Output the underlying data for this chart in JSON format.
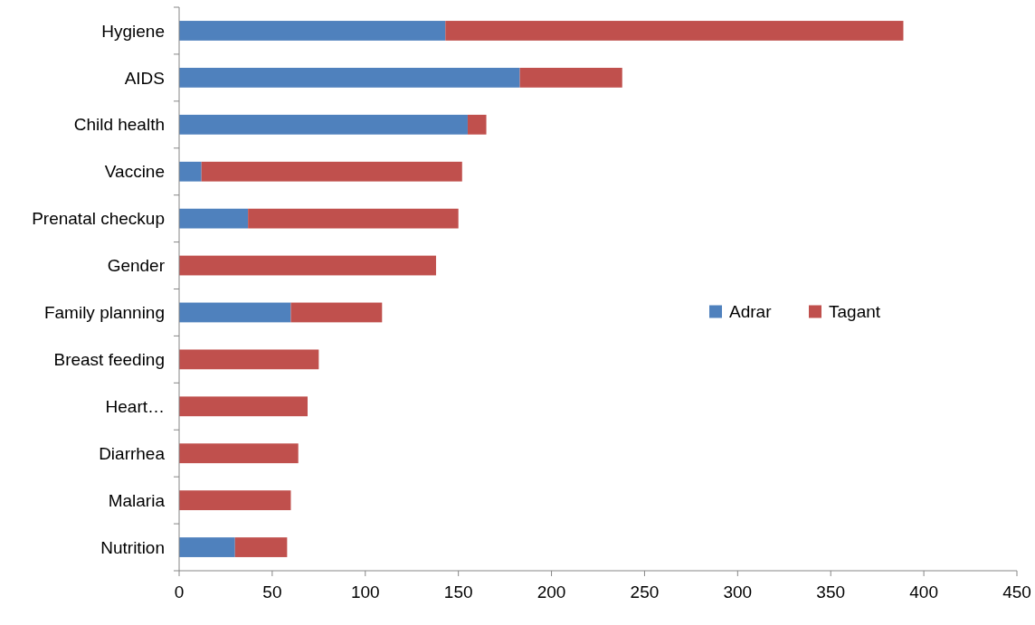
{
  "chart_data": {
    "type": "bar",
    "orientation": "horizontal",
    "stacked": true,
    "categories": [
      "Hygiene",
      "AIDS",
      "Child health",
      "Vaccine",
      "Prenatal checkup",
      "Gender",
      "Family planning",
      "Breast feeding",
      "Heart…",
      "Diarrhea",
      "Malaria",
      "Nutrition"
    ],
    "series": [
      {
        "name": "Adrar",
        "color": "#4f81bd",
        "values": [
          143,
          183,
          155,
          12,
          37,
          0,
          60,
          0,
          0,
          0,
          0,
          30
        ]
      },
      {
        "name": "Tagant",
        "color": "#c0504d",
        "values": [
          246,
          55,
          10,
          140,
          113,
          138,
          49,
          75,
          69,
          64,
          60,
          28
        ]
      }
    ],
    "xlim": [
      0,
      450
    ],
    "xticks": [
      0,
      50,
      100,
      150,
      200,
      250,
      300,
      350,
      400,
      450
    ],
    "grid": false,
    "legend": "right"
  }
}
